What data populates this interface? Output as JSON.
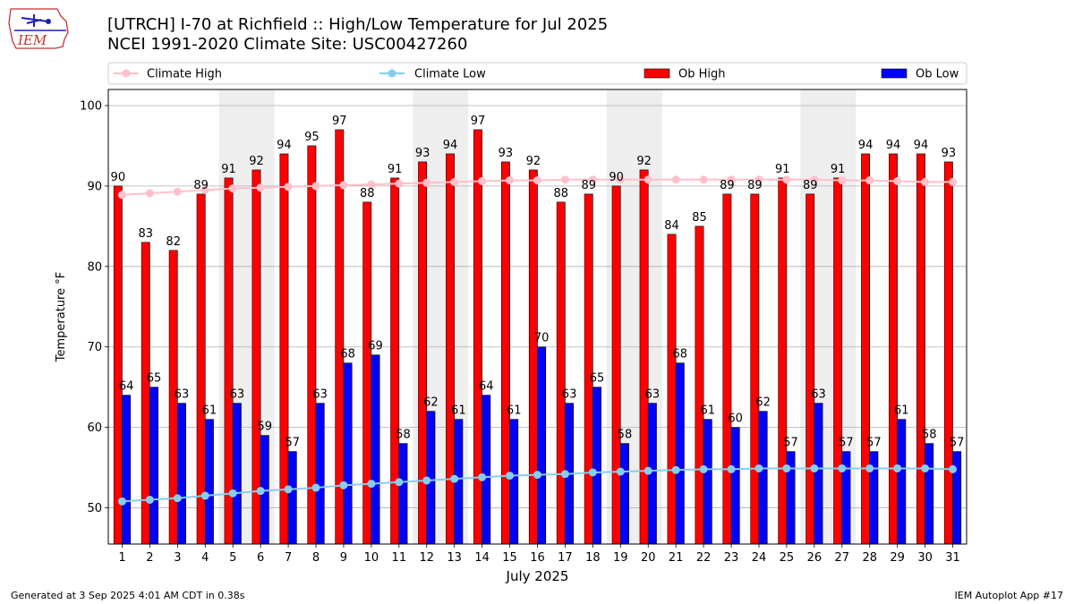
{
  "logo_text": "IEM",
  "title_line1": "[UTRCH] I-70 at Richfield  :: High/Low Temperature for Jul 2025",
  "title_line2": "NCEI 1991-2020 Climate Site: USC00427260",
  "footer_left": "Generated at 3 Sep 2025 4:01 AM CDT in 0.38s",
  "footer_right": "IEM Autoplot App #17",
  "colors": {
    "ob_high": "#ff0000",
    "ob_low": "#0000ff",
    "climate_high": "#ffc0cb",
    "climate_low": "#87ceeb",
    "weekend_shade": "#eeeeee",
    "grid": "#b0b0b0"
  },
  "chart_data": {
    "type": "bar",
    "xlabel": "July 2025",
    "ylabel": "Temperature °F",
    "ylim": [
      45.5,
      102
    ],
    "yticks": [
      50,
      60,
      70,
      80,
      90,
      100
    ],
    "grid": "horizontal",
    "legend_position": "top",
    "categories": [
      "1",
      "2",
      "3",
      "4",
      "5",
      "6",
      "7",
      "8",
      "9",
      "10",
      "11",
      "12",
      "13",
      "14",
      "15",
      "16",
      "17",
      "18",
      "19",
      "20",
      "21",
      "22",
      "23",
      "24",
      "25",
      "26",
      "27",
      "28",
      "29",
      "30",
      "31"
    ],
    "shaded_days": [
      5,
      6,
      12,
      13,
      19,
      20,
      26,
      27
    ],
    "series": [
      {
        "name": "Ob High",
        "kind": "bar",
        "values": [
          90,
          83,
          82,
          89,
          91,
          92,
          94,
          95,
          97,
          88,
          91,
          93,
          94,
          97,
          93,
          92,
          88,
          89,
          90,
          92,
          84,
          85,
          89,
          89,
          91,
          89,
          91,
          94,
          94,
          94,
          93
        ]
      },
      {
        "name": "Ob Low",
        "kind": "bar",
        "values": [
          64,
          65,
          63,
          61,
          63,
          59,
          57,
          63,
          68,
          69,
          58,
          62,
          61,
          64,
          61,
          70,
          63,
          65,
          58,
          63,
          68,
          61,
          60,
          62,
          57,
          63,
          57,
          57,
          61,
          58,
          57
        ]
      },
      {
        "name": "Climate High",
        "kind": "line",
        "values": [
          88.9,
          89.1,
          89.3,
          89.5,
          89.7,
          89.8,
          89.9,
          90.0,
          90.1,
          90.2,
          90.3,
          90.4,
          90.5,
          90.6,
          90.7,
          90.7,
          90.8,
          90.8,
          90.8,
          90.8,
          90.8,
          90.8,
          90.8,
          90.8,
          90.8,
          90.8,
          90.7,
          90.7,
          90.6,
          90.5,
          90.5
        ]
      },
      {
        "name": "Climate Low",
        "kind": "line",
        "values": [
          50.8,
          51.0,
          51.2,
          51.5,
          51.8,
          52.1,
          52.3,
          52.5,
          52.8,
          53.0,
          53.2,
          53.4,
          53.6,
          53.8,
          54.0,
          54.1,
          54.2,
          54.4,
          54.5,
          54.6,
          54.7,
          54.8,
          54.8,
          54.9,
          54.9,
          54.9,
          54.9,
          54.9,
          54.9,
          54.9,
          54.8
        ]
      }
    ]
  }
}
